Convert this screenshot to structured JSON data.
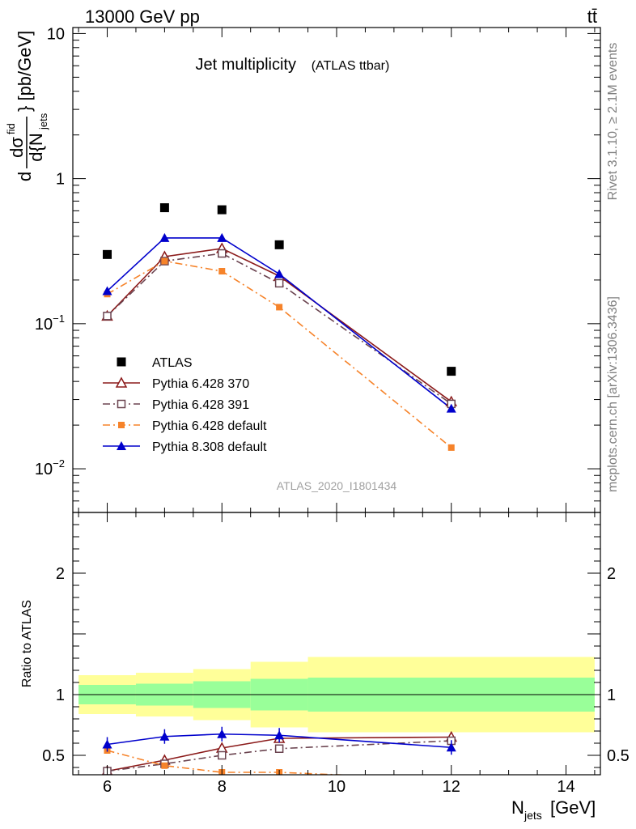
{
  "header": {
    "left": "13000 GeV pp",
    "right": "tt̄"
  },
  "side_labels": {
    "rivet": "Rivet 3.1.10, ≥ 2.1M events",
    "mcplots": "mcplots.cern.ch [arXiv:1306.3436]"
  },
  "main_plot": {
    "title": "Jet multiplicity",
    "title_suffix": "(ATLAS ttbar)",
    "watermark": "ATLAS_2020_I1801434",
    "ylabel_text": "d σ^fid / d{N_jets} [pb/GeV]"
  },
  "ratio_plot": {
    "ylabel": "Ratio to ATLAS",
    "xlabel_main": "N",
    "xlabel_sub": "jets",
    "xlabel_unit": "[GeV]"
  },
  "colors": {
    "atlas": "#000000",
    "py6_370": "#8b1a1a",
    "py6_391": "#6b4450",
    "py6_default": "#f6832a",
    "py8_default": "#0000cc",
    "band_inner": "#99ff99",
    "band_outer": "#ffff99"
  },
  "chart_data": [
    {
      "type": "line",
      "ylog": true,
      "xlim": [
        5.4,
        14.6
      ],
      "ylim": [
        0.005,
        11
      ],
      "x_ticks": [
        6,
        8,
        10,
        12,
        14
      ],
      "y_ticks": [
        {
          "value": 10,
          "label": "10"
        },
        {
          "value": 1,
          "label": "1"
        },
        {
          "value": 0.1,
          "label": "10",
          "exp": "−1"
        },
        {
          "value": 0.01,
          "label": "10",
          "exp": "−2"
        }
      ],
      "legend_position": "bottom-left",
      "series": [
        {
          "name": "ATLAS",
          "marker": "square-filled",
          "line": "none",
          "x": [
            6,
            7,
            8,
            9,
            12
          ],
          "y": [
            0.3,
            0.63,
            0.61,
            0.35,
            0.047
          ]
        },
        {
          "name": "Pythia 6.428 370",
          "marker": "triangle-open",
          "line": "solid",
          "x": [
            6,
            7,
            8,
            9,
            12
          ],
          "y": [
            0.113,
            0.29,
            0.33,
            0.213,
            0.029
          ]
        },
        {
          "name": "Pythia 6.428 391",
          "marker": "square-open",
          "line": "dashdot",
          "x": [
            6,
            7,
            8,
            9,
            12
          ],
          "y": [
            0.113,
            0.27,
            0.305,
            0.19,
            0.028
          ]
        },
        {
          "name": "Pythia 6.428 default",
          "marker": "square-filled-small",
          "line": "dashdot",
          "x": [
            6,
            7,
            8,
            9,
            12
          ],
          "y": [
            0.16,
            0.27,
            0.23,
            0.13,
            0.014
          ]
        },
        {
          "name": "Pythia 8.308 default",
          "marker": "triangle-filled",
          "line": "solid",
          "x": [
            6,
            7,
            8,
            9,
            12
          ],
          "y": [
            0.168,
            0.39,
            0.39,
            0.22,
            0.026
          ]
        }
      ]
    },
    {
      "type": "line",
      "xlim": [
        5.4,
        14.6
      ],
      "ylim": [
        0.34,
        2.5
      ],
      "x_ticks": [
        6,
        8,
        10,
        12,
        14
      ],
      "y_ticks": [
        {
          "value": 0.5,
          "label": "0.5"
        },
        {
          "value": 1,
          "label": "1"
        },
        {
          "value": 2,
          "label": "2"
        }
      ],
      "reference_line": 1,
      "bands": [
        {
          "x_edges": [
            5.5,
            6.5,
            7.5,
            8.5,
            9.5,
            14.5
          ],
          "inner_lo": [
            0.92,
            0.91,
            0.89,
            0.87,
            0.86
          ],
          "inner_hi": [
            1.08,
            1.09,
            1.11,
            1.13,
            1.14
          ],
          "outer_lo": [
            0.84,
            0.82,
            0.79,
            0.73,
            0.69
          ],
          "outer_hi": [
            1.16,
            1.18,
            1.21,
            1.27,
            1.31
          ]
        }
      ],
      "series": [
        {
          "name": "Pythia 6.428 370",
          "x": [
            6,
            7,
            8,
            9,
            12
          ],
          "y": [
            0.37,
            0.46,
            0.56,
            0.64,
            0.65
          ]
        },
        {
          "name": "Pythia 6.428 391",
          "x": [
            6,
            7,
            8,
            9,
            12
          ],
          "y": [
            0.37,
            0.43,
            0.5,
            0.555,
            0.62
          ]
        },
        {
          "name": "Pythia 6.428 default",
          "x": [
            6,
            7,
            8,
            9,
            12
          ],
          "y": [
            0.54,
            0.415,
            0.36,
            0.36,
            0.3
          ]
        },
        {
          "name": "Pythia 8.308 default",
          "x": [
            6,
            7,
            8,
            9,
            12
          ],
          "y": [
            0.59,
            0.655,
            0.675,
            0.665,
            0.565
          ]
        }
      ]
    }
  ]
}
